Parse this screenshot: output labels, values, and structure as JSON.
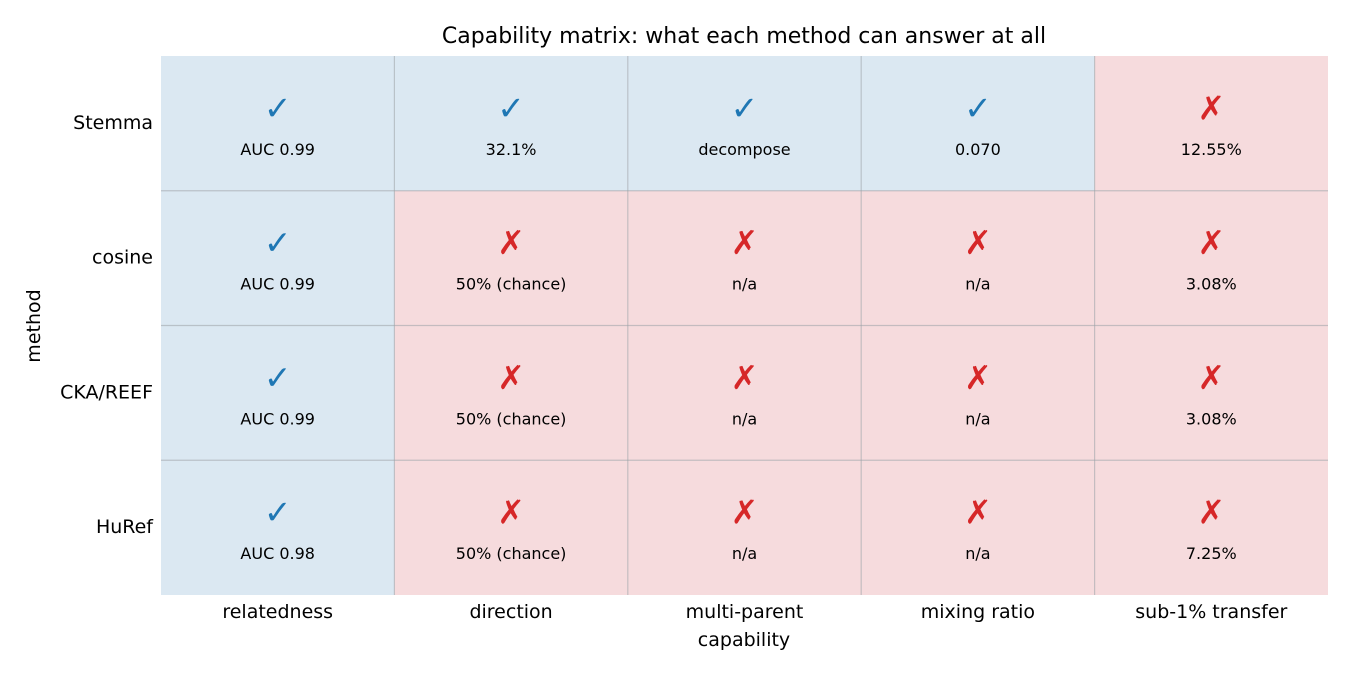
{
  "chart_data": {
    "type": "table",
    "title": "Capability matrix: what each method can answer at all",
    "xlabel": "capability",
    "ylabel": "method",
    "columns": [
      "relatedness",
      "direction",
      "multi-parent",
      "mixing ratio",
      "sub-1% transfer"
    ],
    "rows": [
      {
        "method": "Stemma",
        "supported": [
          true,
          true,
          true,
          true,
          false
        ],
        "values": [
          "AUC 0.99",
          "32.1%",
          "decompose",
          "0.070",
          "12.55%"
        ]
      },
      {
        "method": "cosine",
        "supported": [
          true,
          false,
          false,
          false,
          false
        ],
        "values": [
          "AUC 0.99",
          "50% (chance)",
          "n/a",
          "n/a",
          "3.08%"
        ]
      },
      {
        "method": "CKA/REEF",
        "supported": [
          true,
          false,
          false,
          false,
          false
        ],
        "values": [
          "AUC 0.99",
          "50% (chance)",
          "n/a",
          "n/a",
          "3.08%"
        ]
      },
      {
        "method": "HuRef",
        "supported": [
          true,
          false,
          false,
          false,
          false
        ],
        "values": [
          "AUC 0.98",
          "50% (chance)",
          "n/a",
          "n/a",
          "7.25%"
        ]
      }
    ],
    "symbols": {
      "yes": "✓",
      "no": "✗"
    },
    "colors": {
      "yes_fill": "#dbe8f2",
      "no_fill": "#f6dbdd",
      "yes_mark": "#1f77b4",
      "no_mark": "#d62728",
      "grid": "#9aa0a6"
    },
    "grid": true
  }
}
